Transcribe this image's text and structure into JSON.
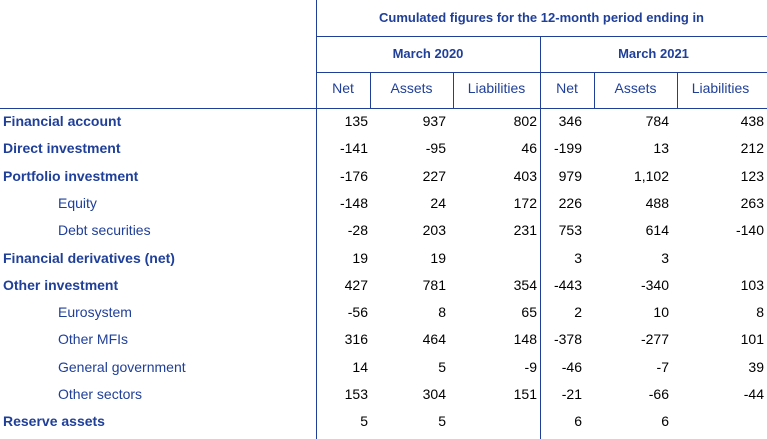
{
  "header": {
    "period_title": "Cumulated figures for the 12-month period ending in",
    "period1": "March 2020",
    "period2": "March 2021",
    "columns": [
      "Net",
      "Assets",
      "Liabilities",
      "Net",
      "Assets",
      "Liabilities"
    ]
  },
  "rows": [
    {
      "label": "Financial account",
      "bold": true,
      "values": [
        "135",
        "937",
        "802",
        "346",
        "784",
        "438"
      ]
    },
    {
      "label": "Direct investment",
      "bold": true,
      "values": [
        "-141",
        "-95",
        "46",
        "-199",
        "13",
        "212"
      ]
    },
    {
      "label": "Portfolio investment",
      "bold": true,
      "values": [
        "-176",
        "227",
        "403",
        "979",
        "1,102",
        "123"
      ]
    },
    {
      "label": "Equity",
      "bold": false,
      "values": [
        "-148",
        "24",
        "172",
        "226",
        "488",
        "263"
      ]
    },
    {
      "label": "Debt securities",
      "bold": false,
      "values": [
        "-28",
        "203",
        "231",
        "753",
        "614",
        "-140"
      ]
    },
    {
      "label": "Financial derivatives (net)",
      "bold": true,
      "values": [
        "19",
        "19",
        "",
        "3",
        "3",
        ""
      ]
    },
    {
      "label": "Other investment",
      "bold": true,
      "values": [
        "427",
        "781",
        "354",
        "-443",
        "-340",
        "103"
      ]
    },
    {
      "label": "Eurosystem",
      "bold": false,
      "values": [
        "-56",
        "8",
        "65",
        "2",
        "10",
        "8"
      ]
    },
    {
      "label": "Other MFIs",
      "bold": false,
      "values": [
        "316",
        "464",
        "148",
        "-378",
        "-277",
        "101"
      ]
    },
    {
      "label": "General government",
      "bold": false,
      "values": [
        "14",
        "5",
        "-9",
        "-46",
        "-7",
        "39"
      ]
    },
    {
      "label": "Other sectors",
      "bold": false,
      "values": [
        "153",
        "304",
        "151",
        "-21",
        "-66",
        "-44"
      ]
    },
    {
      "label": "Reserve assets",
      "bold": true,
      "values": [
        "5",
        "5",
        "",
        "6",
        "6",
        ""
      ]
    }
  ]
}
